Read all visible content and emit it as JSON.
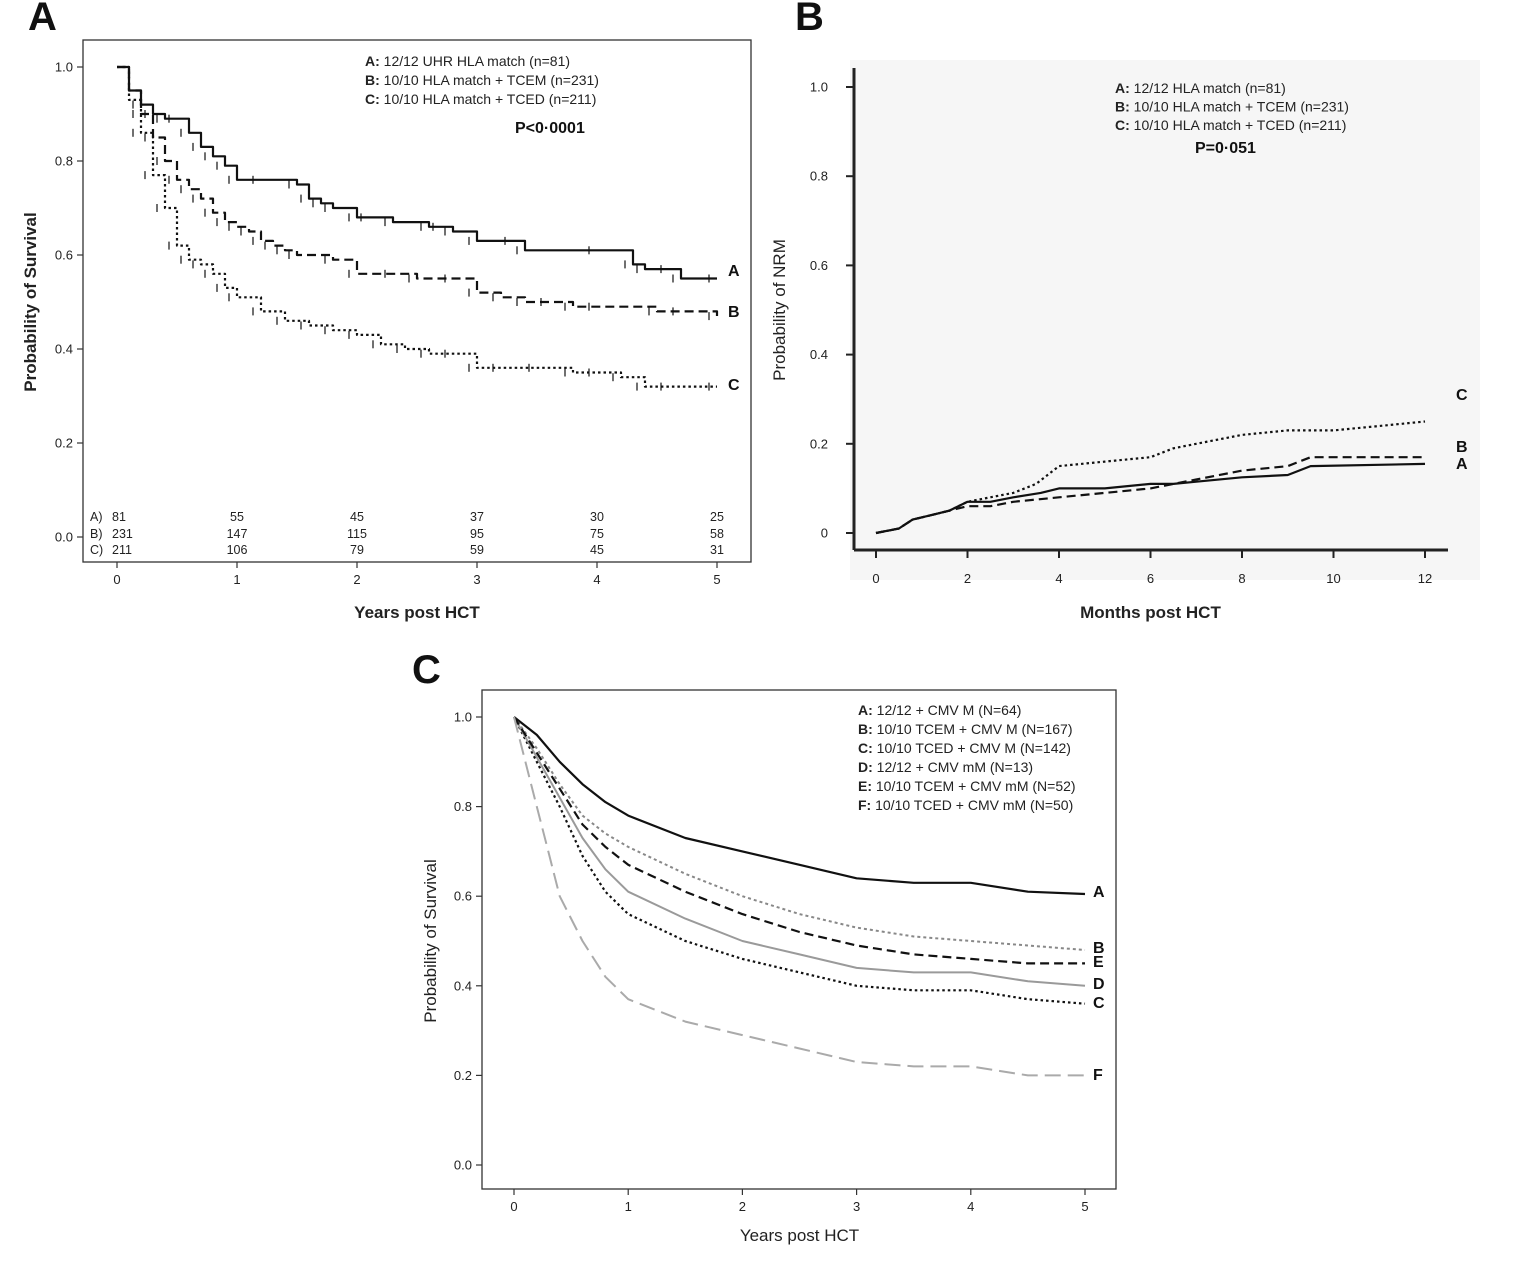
{
  "chart_data": [
    {
      "panel": "A",
      "type": "line",
      "xlabel": "Years post HCT",
      "ylabel": "Probability of Survival",
      "xlim": [
        0,
        5
      ],
      "ylim": [
        0,
        1.0
      ],
      "xticks": [
        "0",
        "1",
        "2",
        "3",
        "4",
        "5"
      ],
      "yticks": [
        "0.0",
        "0.2",
        "0.4",
        "0.6",
        "0.8",
        "1.0"
      ],
      "legend": [
        {
          "key": "A:",
          "text": "12/12 UHR HLA match (n=81)"
        },
        {
          "key": "B:",
          "text": "10/10 HLA match + TCEM (n=231)"
        },
        {
          "key": "C:",
          "text": "10/10 HLA match + TCED (n=211)"
        }
      ],
      "pvalue": "P<0·0001",
      "series": [
        {
          "name": "A",
          "style": "solid",
          "x": [
            0,
            0.1,
            0.2,
            0.3,
            0.4,
            0.5,
            0.6,
            0.7,
            0.8,
            0.9,
            1.0,
            1.2,
            1.5,
            1.6,
            1.7,
            1.8,
            2.0,
            2.1,
            2.3,
            2.6,
            2.7,
            2.8,
            3.0,
            3.3,
            3.4,
            4.0,
            4.3,
            4.4,
            4.6,
            4.7,
            5.0
          ],
          "y": [
            1.0,
            0.95,
            0.92,
            0.9,
            0.89,
            0.89,
            0.86,
            0.83,
            0.81,
            0.79,
            0.76,
            0.76,
            0.75,
            0.72,
            0.71,
            0.7,
            0.68,
            0.68,
            0.67,
            0.66,
            0.66,
            0.65,
            0.63,
            0.63,
            0.61,
            0.61,
            0.58,
            0.57,
            0.57,
            0.55,
            0.55
          ]
        },
        {
          "name": "B",
          "style": "dashed",
          "x": [
            0,
            0.1,
            0.2,
            0.3,
            0.4,
            0.5,
            0.6,
            0.7,
            0.8,
            0.9,
            1.0,
            1.1,
            1.2,
            1.3,
            1.4,
            1.5,
            1.8,
            2.0,
            2.3,
            2.5,
            2.8,
            3.0,
            3.2,
            3.4,
            3.6,
            3.8,
            4.0,
            4.5,
            4.7,
            5.0
          ],
          "y": [
            1.0,
            0.95,
            0.9,
            0.85,
            0.8,
            0.76,
            0.74,
            0.72,
            0.69,
            0.67,
            0.66,
            0.65,
            0.63,
            0.62,
            0.61,
            0.6,
            0.59,
            0.56,
            0.56,
            0.55,
            0.55,
            0.52,
            0.51,
            0.5,
            0.5,
            0.49,
            0.49,
            0.48,
            0.48,
            0.47
          ]
        },
        {
          "name": "C",
          "style": "dotted",
          "x": [
            0,
            0.1,
            0.2,
            0.3,
            0.4,
            0.5,
            0.6,
            0.7,
            0.8,
            0.9,
            1.0,
            1.2,
            1.4,
            1.6,
            1.8,
            2.0,
            2.2,
            2.4,
            2.6,
            2.8,
            3.0,
            3.2,
            3.5,
            3.8,
            4.0,
            4.2,
            4.4,
            4.6,
            5.0
          ],
          "y": [
            1.0,
            0.93,
            0.86,
            0.77,
            0.7,
            0.62,
            0.59,
            0.58,
            0.56,
            0.53,
            0.51,
            0.48,
            0.46,
            0.45,
            0.44,
            0.43,
            0.41,
            0.4,
            0.39,
            0.39,
            0.36,
            0.36,
            0.36,
            0.35,
            0.35,
            0.34,
            0.32,
            0.32,
            0.32
          ]
        }
      ],
      "risk_table": {
        "rows": [
          {
            "label": "A)",
            "values": [
              "81",
              "55",
              "45",
              "37",
              "30",
              "25"
            ]
          },
          {
            "label": "B)",
            "values": [
              "231",
              "147",
              "115",
              "95",
              "75",
              "58"
            ]
          },
          {
            "label": "C)",
            "values": [
              "211",
              "106",
              "79",
              "59",
              "45",
              "31"
            ]
          }
        ]
      }
    },
    {
      "panel": "B",
      "type": "line",
      "xlabel": "Months post HCT",
      "ylabel": "Probability of NRM",
      "xlim": [
        0,
        12
      ],
      "ylim": [
        0,
        1.0
      ],
      "xticks": [
        "0",
        "2",
        "4",
        "6",
        "8",
        "10",
        "12"
      ],
      "yticks": [
        "0",
        "0.2",
        "0.4",
        "0.6",
        "0.8",
        "1.0"
      ],
      "legend": [
        {
          "key": "A:",
          "text": "12/12 HLA match (n=81)"
        },
        {
          "key": "B:",
          "text": "10/10 HLA match + TCEM (n=231)"
        },
        {
          "key": "C:",
          "text": "10/10 HLA match + TCED (n=211)"
        }
      ],
      "pvalue": "P=0·051",
      "series": [
        {
          "name": "A",
          "style": "solid",
          "x": [
            0,
            0.5,
            0.8,
            1.2,
            1.6,
            2.0,
            2.5,
            3.0,
            3.6,
            4.0,
            5.0,
            6.0,
            6.5,
            7.0,
            8.0,
            9.0,
            9.5,
            12.0
          ],
          "y": [
            0,
            0.01,
            0.03,
            0.04,
            0.05,
            0.07,
            0.07,
            0.08,
            0.09,
            0.1,
            0.1,
            0.11,
            0.11,
            0.115,
            0.125,
            0.13,
            0.15,
            0.155
          ]
        },
        {
          "name": "B",
          "style": "dashed",
          "x": [
            0,
            0.5,
            0.8,
            1.2,
            1.6,
            2.0,
            2.5,
            3.0,
            4.0,
            5.0,
            6.0,
            7.0,
            8.0,
            9.0,
            9.5,
            12.0
          ],
          "y": [
            0,
            0.01,
            0.03,
            0.04,
            0.05,
            0.06,
            0.06,
            0.07,
            0.08,
            0.09,
            0.1,
            0.12,
            0.14,
            0.15,
            0.17,
            0.17
          ]
        },
        {
          "name": "C",
          "style": "dotted",
          "x": [
            0,
            0.5,
            0.8,
            1.2,
            1.6,
            2.0,
            2.5,
            3.0,
            3.5,
            4.0,
            5.0,
            6.0,
            6.5,
            7.0,
            8.0,
            9.0,
            10.0,
            11.0,
            12.0
          ],
          "y": [
            0,
            0.01,
            0.03,
            0.04,
            0.05,
            0.07,
            0.08,
            0.09,
            0.11,
            0.15,
            0.16,
            0.17,
            0.19,
            0.2,
            0.22,
            0.23,
            0.23,
            0.24,
            0.25
          ]
        }
      ]
    },
    {
      "panel": "C",
      "type": "line",
      "xlabel": "Years post HCT",
      "ylabel": "Probability of Survival",
      "xlim": [
        0,
        5
      ],
      "ylim": [
        0,
        1.0
      ],
      "xticks": [
        "0",
        "1",
        "2",
        "3",
        "4",
        "5"
      ],
      "yticks": [
        "0.0",
        "0.2",
        "0.4",
        "0.6",
        "0.8",
        "1.0"
      ],
      "legend": [
        {
          "key": "A:",
          "text": "12/12 + CMV M (N=64)"
        },
        {
          "key": "B:",
          "text": "10/10 TCEM + CMV M (N=167)"
        },
        {
          "key": "C:",
          "text": "10/10 TCED + CMV M (N=142)"
        },
        {
          "key": "D:",
          "text": "12/12 + CMV mM (N=13)"
        },
        {
          "key": "E:",
          "text": "10/10 TCEM + CMV mM (N=52)"
        },
        {
          "key": "F:",
          "text": "10/10 TCED + CMV mM (N=50)"
        }
      ],
      "series": [
        {
          "name": "A",
          "style": "solid",
          "color": "#111111",
          "x": [
            0,
            0.2,
            0.4,
            0.6,
            0.8,
            1.0,
            1.5,
            2.0,
            2.5,
            3.0,
            3.5,
            4.0,
            4.5,
            5.0
          ],
          "y": [
            1.0,
            0.96,
            0.9,
            0.85,
            0.81,
            0.78,
            0.73,
            0.7,
            0.67,
            0.64,
            0.63,
            0.63,
            0.61,
            0.605
          ]
        },
        {
          "name": "B",
          "style": "dotted-gray",
          "color": "#888888",
          "x": [
            0,
            0.2,
            0.4,
            0.6,
            0.8,
            1.0,
            1.5,
            2.0,
            2.5,
            3.0,
            3.5,
            4.0,
            4.5,
            5.0
          ],
          "y": [
            1.0,
            0.93,
            0.85,
            0.78,
            0.74,
            0.71,
            0.65,
            0.6,
            0.56,
            0.53,
            0.51,
            0.5,
            0.49,
            0.48
          ]
        },
        {
          "name": "C",
          "style": "dotted",
          "color": "#111111",
          "x": [
            0,
            0.2,
            0.4,
            0.6,
            0.8,
            1.0,
            1.5,
            2.0,
            2.5,
            3.0,
            3.5,
            4.0,
            4.5,
            5.0
          ],
          "y": [
            1.0,
            0.9,
            0.8,
            0.69,
            0.61,
            0.56,
            0.5,
            0.46,
            0.43,
            0.4,
            0.39,
            0.39,
            0.37,
            0.36
          ]
        },
        {
          "name": "D",
          "style": "solid-gray",
          "color": "#999999",
          "x": [
            0,
            0.2,
            0.4,
            0.6,
            0.8,
            1.0,
            1.5,
            2.0,
            2.5,
            3.0,
            3.5,
            4.0,
            4.5,
            5.0
          ],
          "y": [
            1.0,
            0.91,
            0.82,
            0.73,
            0.66,
            0.61,
            0.55,
            0.5,
            0.47,
            0.44,
            0.43,
            0.43,
            0.41,
            0.4
          ]
        },
        {
          "name": "E",
          "style": "dashed",
          "color": "#222222",
          "x": [
            0,
            0.2,
            0.4,
            0.6,
            0.8,
            1.0,
            1.5,
            2.0,
            2.5,
            3.0,
            3.5,
            4.0,
            4.5,
            5.0
          ],
          "y": [
            1.0,
            0.92,
            0.84,
            0.76,
            0.71,
            0.67,
            0.61,
            0.56,
            0.52,
            0.49,
            0.47,
            0.46,
            0.45,
            0.45
          ]
        },
        {
          "name": "F",
          "style": "longdash-gray",
          "color": "#aaaaaa",
          "x": [
            0,
            0.1,
            0.2,
            0.3,
            0.4,
            0.6,
            0.8,
            1.0,
            1.5,
            2.0,
            2.5,
            3.0,
            3.5,
            4.0,
            4.5,
            5.0
          ],
          "y": [
            1.0,
            0.9,
            0.8,
            0.7,
            0.6,
            0.5,
            0.42,
            0.37,
            0.32,
            0.29,
            0.26,
            0.23,
            0.22,
            0.22,
            0.2,
            0.2
          ]
        }
      ]
    }
  ]
}
